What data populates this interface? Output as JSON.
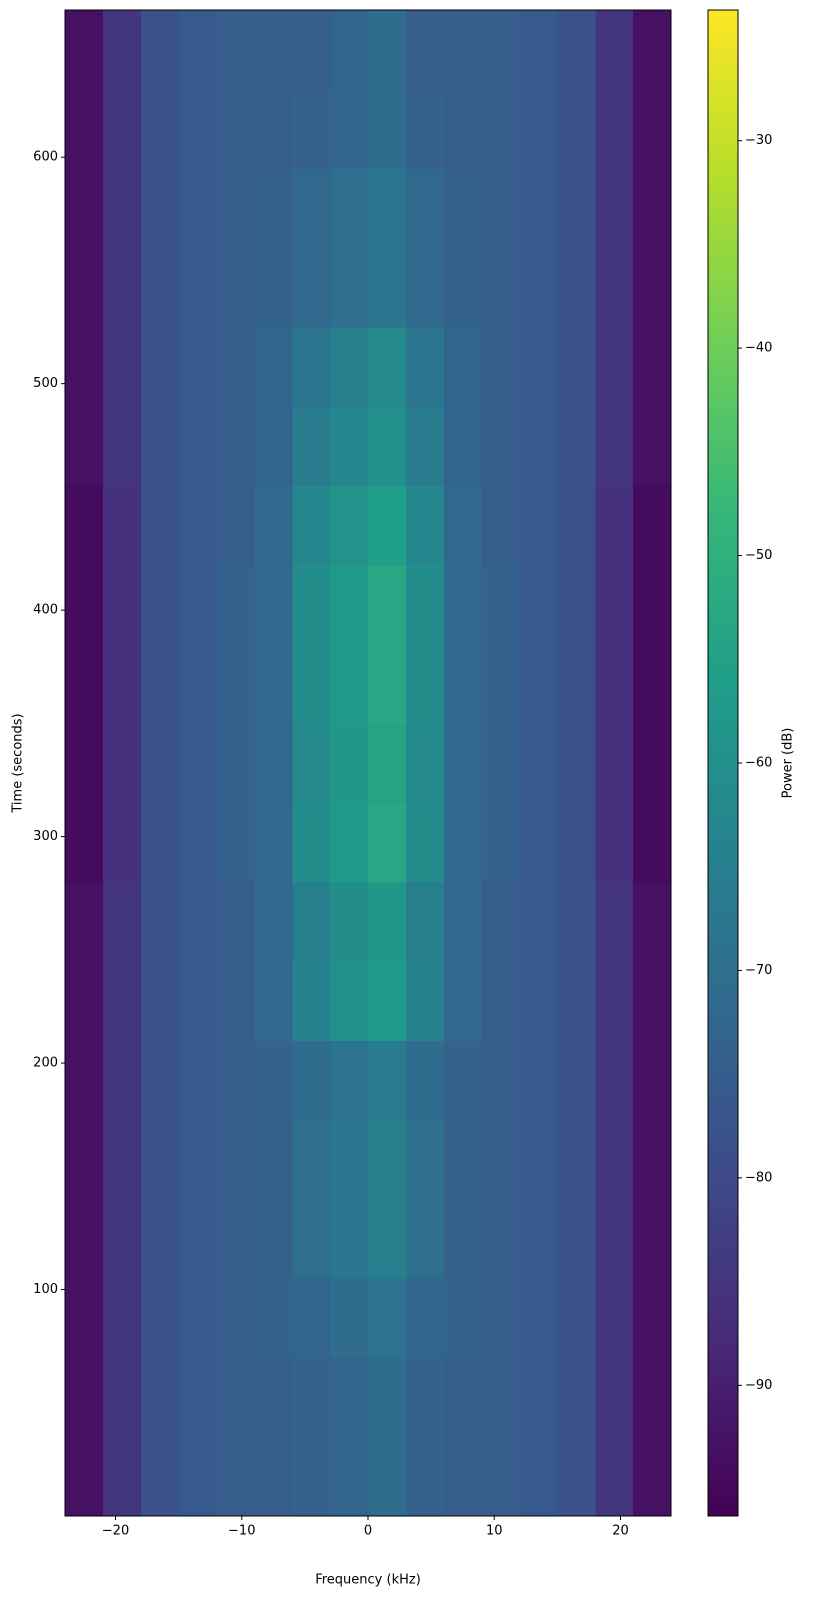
{
  "chart_data": {
    "type": "heatmap",
    "x_label": "Frequency (kHz)",
    "y_label": "Time (seconds)",
    "colorbar_label": "Power (dB)",
    "colormap": "viridis",
    "x_edges": [
      -24,
      -21,
      -18,
      -15,
      -12,
      -9,
      -6,
      -3,
      0,
      3,
      6,
      9,
      12,
      15,
      18,
      21,
      24
    ],
    "y_edges": [
      0,
      35,
      70,
      105,
      140,
      175,
      210,
      245,
      280,
      315,
      350,
      385,
      420,
      455,
      490,
      525,
      560,
      595,
      630,
      665
    ],
    "values": [
      [
        -93,
        -85,
        -78,
        -76,
        -75,
        -75,
        -74,
        -73,
        -71,
        -74,
        -75,
        -75,
        -76,
        -78,
        -85,
        -93
      ],
      [
        -93,
        -85,
        -78,
        -76,
        -75,
        -75,
        -74,
        -73,
        -71,
        -74,
        -75,
        -75,
        -76,
        -78,
        -85,
        -93
      ],
      [
        -93,
        -85,
        -78,
        -76,
        -75,
        -74,
        -73,
        -71,
        -69,
        -73,
        -74,
        -75,
        -76,
        -78,
        -85,
        -93
      ],
      [
        -93,
        -85,
        -78,
        -76,
        -75,
        -74,
        -70,
        -68,
        -65,
        -70,
        -74,
        -75,
        -76,
        -78,
        -85,
        -93
      ],
      [
        -93,
        -85,
        -78,
        -76,
        -75,
        -74,
        -70,
        -68,
        -65,
        -70,
        -74,
        -75,
        -76,
        -78,
        -85,
        -93
      ],
      [
        -93,
        -85,
        -78,
        -76,
        -75,
        -74,
        -71,
        -69,
        -66,
        -71,
        -74,
        -75,
        -76,
        -78,
        -85,
        -93
      ],
      [
        -93,
        -85,
        -78,
        -76,
        -75,
        -72,
        -64,
        -60,
        -57,
        -64,
        -72,
        -75,
        -76,
        -78,
        -85,
        -93
      ],
      [
        -93,
        -85,
        -78,
        -76,
        -75,
        -72,
        -65,
        -61,
        -58,
        -65,
        -72,
        -75,
        -76,
        -78,
        -85,
        -93
      ],
      [
        -94,
        -86,
        -78,
        -76,
        -74,
        -72,
        -61,
        -57,
        -53,
        -61,
        -72,
        -74,
        -76,
        -78,
        -86,
        -94
      ],
      [
        -94,
        -86,
        -78,
        -76,
        -74,
        -72,
        -62,
        -58,
        -54,
        -62,
        -72,
        -74,
        -76,
        -78,
        -86,
        -94
      ],
      [
        -94,
        -86,
        -78,
        -76,
        -74,
        -72,
        -61,
        -57,
        -53,
        -61,
        -72,
        -74,
        -76,
        -78,
        -86,
        -94
      ],
      [
        -94,
        -86,
        -78,
        -76,
        -74,
        -72,
        -61,
        -57,
        -53,
        -61,
        -72,
        -74,
        -76,
        -78,
        -86,
        -94
      ],
      [
        -94,
        -86,
        -78,
        -76,
        -75,
        -72,
        -63,
        -59,
        -56,
        -63,
        -72,
        -75,
        -76,
        -78,
        -86,
        -94
      ],
      [
        -93,
        -85,
        -78,
        -76,
        -75,
        -73,
        -66,
        -63,
        -60,
        -66,
        -73,
        -75,
        -76,
        -78,
        -85,
        -93
      ],
      [
        -93,
        -85,
        -78,
        -76,
        -75,
        -73,
        -68,
        -65,
        -62,
        -68,
        -73,
        -75,
        -76,
        -78,
        -85,
        -93
      ],
      [
        -93,
        -85,
        -78,
        -76,
        -75,
        -74,
        -72,
        -70,
        -68,
        -72,
        -74,
        -75,
        -76,
        -78,
        -85,
        -93
      ],
      [
        -93,
        -85,
        -78,
        -76,
        -75,
        -74,
        -72,
        -70,
        -68,
        -72,
        -74,
        -75,
        -76,
        -78,
        -85,
        -93
      ],
      [
        -93,
        -85,
        -78,
        -76,
        -75,
        -75,
        -74,
        -73,
        -71,
        -74,
        -75,
        -75,
        -76,
        -78,
        -85,
        -93
      ],
      [
        -93,
        -85,
        -78,
        -76,
        -75,
        -75,
        -75,
        -73,
        -71,
        -75,
        -75,
        -75,
        -76,
        -78,
        -85,
        -93
      ]
    ],
    "xlim": [
      -24,
      24
    ],
    "ylim": [
      0,
      665
    ],
    "clim": [
      -96.3,
      -23.7
    ],
    "xticks": [
      {
        "value": -20,
        "label": "−20"
      },
      {
        "value": -10,
        "label": "−10"
      },
      0,
      10,
      20
    ],
    "yticks": [
      100,
      200,
      300,
      400,
      500,
      600
    ],
    "cticks": [
      {
        "value": -30,
        "label": "−30"
      },
      {
        "value": -40,
        "label": "−40"
      },
      {
        "value": -50,
        "label": "−50"
      },
      {
        "value": -60,
        "label": "−60"
      },
      {
        "value": -70,
        "label": "−70"
      },
      {
        "value": -80,
        "label": "−80"
      },
      {
        "value": -90,
        "label": "−90"
      }
    ]
  }
}
